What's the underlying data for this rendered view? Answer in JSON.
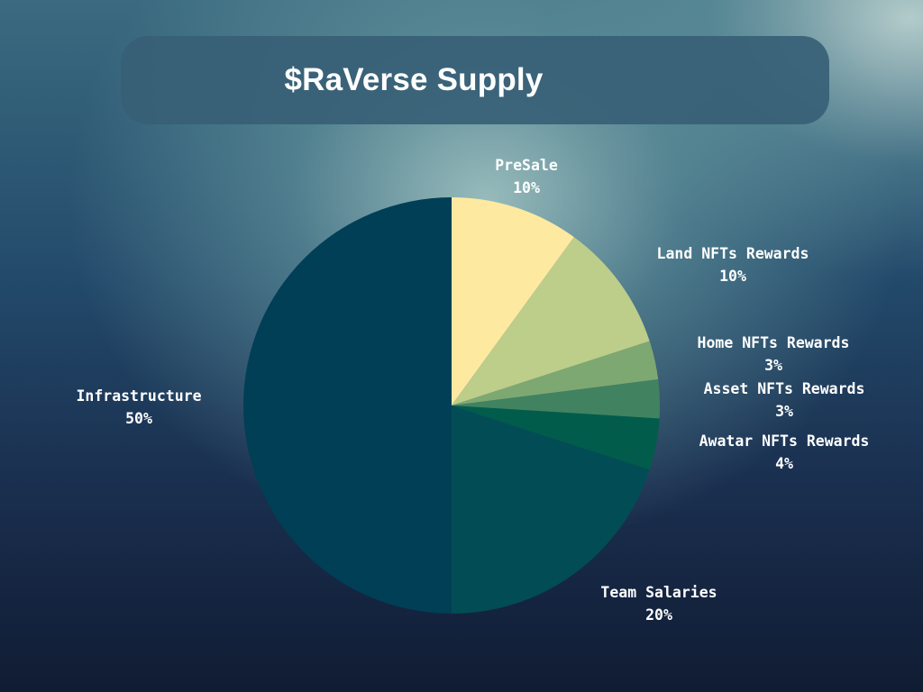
{
  "chart_data": {
    "type": "pie",
    "title": "$RaVerse Supply",
    "slices": [
      {
        "label": "PreSale",
        "pct_label": "10%",
        "value": 10,
        "color": "#fde9a0"
      },
      {
        "label": "Land NFTs Rewards",
        "pct_label": "10%",
        "value": 10,
        "color": "#bdcd8a"
      },
      {
        "label": "Home NFTs Rewards",
        "pct_label": "3%",
        "value": 3,
        "color": "#7ea872"
      },
      {
        "label": "Asset NFTs Rewards",
        "pct_label": "3%",
        "value": 3,
        "color": "#418260"
      },
      {
        "label": "Awatar NFTs Rewards",
        "pct_label": "4%",
        "value": 4,
        "color": "#015c4b"
      },
      {
        "label": "Team Salaries",
        "pct_label": "20%",
        "value": 20,
        "color": "#024d55"
      },
      {
        "label": "Infrastructure",
        "pct_label": "50%",
        "value": 50,
        "color": "#003f56"
      }
    ]
  }
}
